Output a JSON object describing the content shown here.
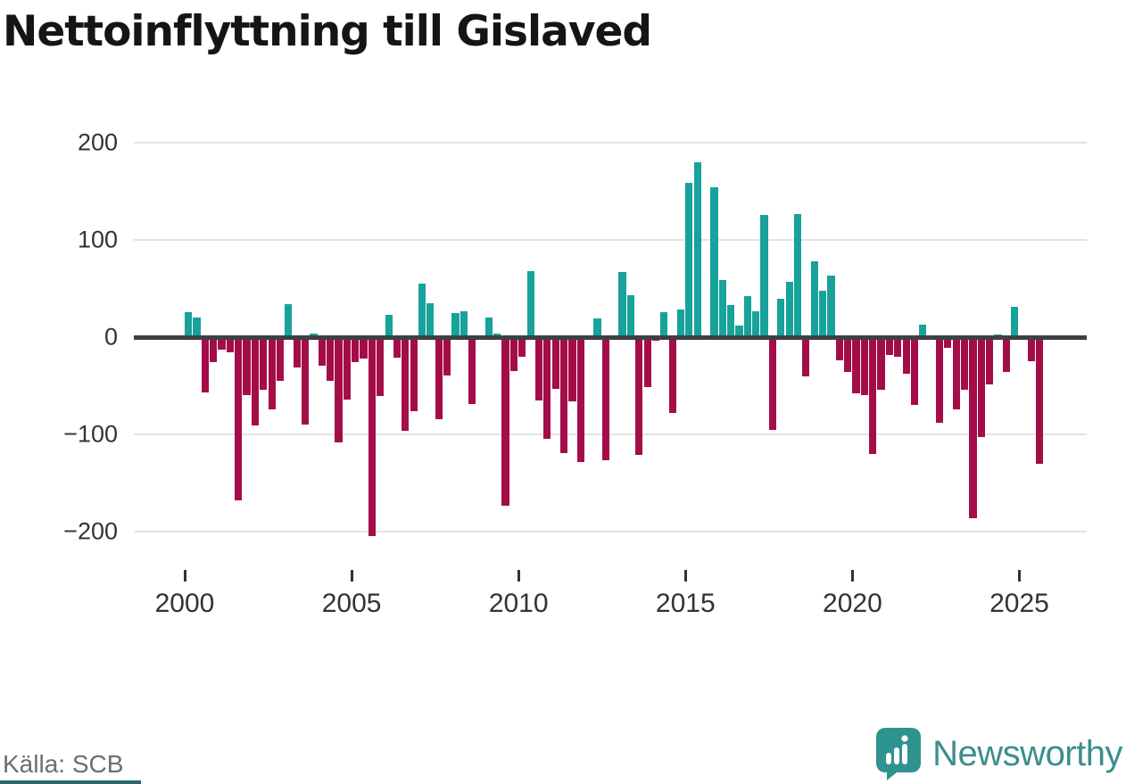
{
  "title": "Nettoinflyttning till Gislaved",
  "source": "Källa: SCB",
  "brand": {
    "name": "Newsworthy",
    "icon": "bar-chart-pin-icon"
  },
  "colors": {
    "positive": "#17a29b",
    "negative": "#a50d49",
    "zero_axis": "#3c4145",
    "gridline": "#e3e3e3",
    "axis_text": "#333333",
    "source_text": "#6e6e6e",
    "brand_teal": "#3b8e8c",
    "badge_teal": "#2f9390",
    "footer_strip": "#2b646a"
  },
  "y_axis": {
    "ticks": [
      {
        "label": "200",
        "value": 200
      },
      {
        "label": "100",
        "value": 100
      },
      {
        "label": "0",
        "value": 0
      },
      {
        "label": "−100",
        "value": -100
      },
      {
        "label": "−200",
        "value": -200
      }
    ]
  },
  "x_axis": {
    "ticks": [
      {
        "label": "2000",
        "year": 2000
      },
      {
        "label": "2005",
        "year": 2005
      },
      {
        "label": "2010",
        "year": 2010
      },
      {
        "label": "2015",
        "year": 2015
      },
      {
        "label": "2020",
        "year": 2020
      },
      {
        "label": "2025",
        "year": 2025
      }
    ]
  },
  "chart_data": {
    "type": "bar",
    "title": "Nettoinflyttning till Gislaved",
    "period": "quarterly",
    "start": "2000 Q1",
    "end": "2025 Q3",
    "ylim": [
      -230,
      230
    ],
    "grid": true,
    "values": [
      26,
      20,
      -57,
      -26,
      -13,
      -16,
      -168,
      -60,
      -91,
      -54,
      -74,
      -45,
      34,
      -31,
      -90,
      4,
      -29,
      -45,
      -108,
      -64,
      -26,
      -22,
      -205,
      -61,
      23,
      -21,
      -96,
      -76,
      55,
      35,
      -84,
      -39,
      25,
      27,
      -69,
      -3,
      20,
      4,
      -173,
      -35,
      -20,
      68,
      -65,
      -105,
      -53,
      -119,
      -66,
      -128,
      0,
      19,
      -127,
      0,
      67,
      43,
      -121,
      -51,
      -4,
      26,
      -78,
      28,
      159,
      180,
      2,
      154,
      59,
      33,
      12,
      42,
      27,
      126,
      -95,
      39,
      57,
      127,
      -40,
      78,
      48,
      63,
      -24,
      -36,
      -58,
      -60,
      -120,
      -54,
      -18,
      -20,
      -38,
      -70,
      13,
      0,
      -88,
      -11,
      -74,
      -54,
      -186,
      -103,
      -49,
      3,
      -36,
      31,
      0,
      -25,
      -130
    ]
  }
}
